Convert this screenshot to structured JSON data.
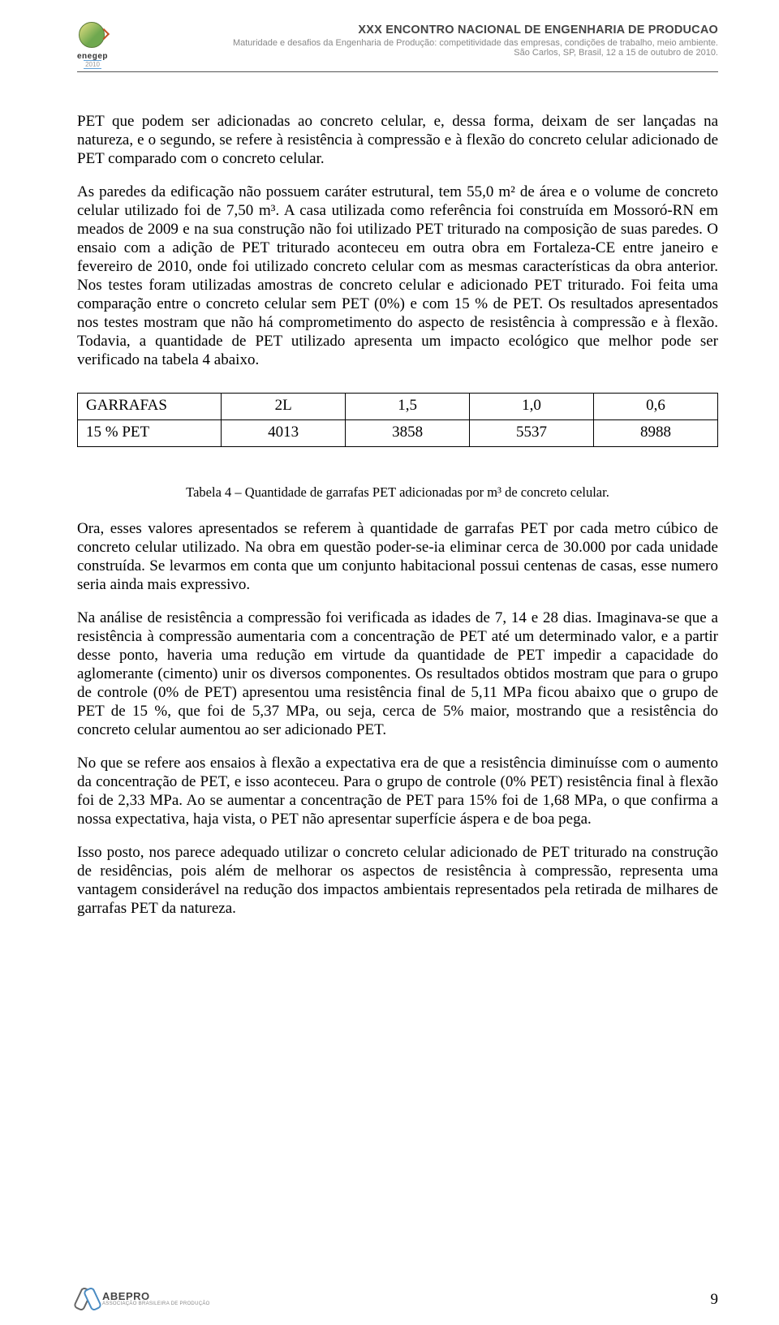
{
  "header": {
    "title": "XXX ENCONTRO NACIONAL DE ENGENHARIA DE PRODUCAO",
    "subtitle": "Maturidade e desafios da Engenharia de Produção: competitividade das empresas, condições de trabalho, meio ambiente.",
    "location": "São Carlos, SP, Brasil, 12 a 15 de outubro de 2010.",
    "logo_name": "enegep",
    "logo_year": "2010"
  },
  "paragraphs": {
    "p1": "PET que podem ser adicionadas ao concreto celular, e, dessa forma, deixam de ser lançadas na natureza, e o segundo, se refere à resistência à compressão e à flexão do concreto celular adicionado de PET comparado com o concreto celular.",
    "p2": "As paredes da edificação não possuem caráter estrutural, tem 55,0 m² de área e o volume de concreto celular utilizado foi de 7,50 m³. A casa utilizada como referência foi construída em Mossoró-RN em meados de 2009 e na sua construção não foi utilizado PET triturado na composição de suas paredes. O ensaio com a adição de PET triturado aconteceu em outra obra em Fortaleza-CE entre janeiro e fevereiro de 2010, onde foi utilizado concreto celular com as mesmas características da obra anterior. Nos testes foram utilizadas amostras de concreto celular e adicionado PET triturado. Foi feita uma comparação entre o concreto celular sem PET (0%) e com 15 % de PET. Os resultados apresentados nos testes mostram que não há comprometimento do aspecto de resistência à compressão e à flexão. Todavia, a quantidade de PET utilizado apresenta um impacto ecológico que melhor pode ser verificado na tabela 4 abaixo.",
    "p3": "Ora, esses valores apresentados se referem à quantidade de garrafas PET por cada metro cúbico de concreto celular utilizado. Na obra em questão poder-se-ia eliminar cerca de 30.000 por cada unidade construída. Se levarmos em conta que um conjunto habitacional possui centenas de casas, esse numero seria ainda mais expressivo.",
    "p4": "Na análise de resistência a compressão foi verificada as idades de 7, 14 e 28 dias. Imaginava-se que a resistência à compressão aumentaria com a concentração de PET até um determinado valor, e a partir desse ponto, haveria uma redução em virtude da quantidade de PET impedir a capacidade do aglomerante (cimento) unir os diversos componentes. Os resultados obtidos mostram que para o grupo de controle (0% de PET) apresentou uma resistência final de 5,11 MPa ficou abaixo que o grupo de PET de 15 %, que foi de 5,37 MPa, ou seja, cerca de 5% maior, mostrando que a resistência do concreto celular aumentou ao ser adicionado PET.",
    "p5": "No que se refere aos ensaios à flexão a expectativa era de que a resistência diminuísse com o aumento da concentração de PET, e isso aconteceu. Para o grupo de controle (0% PET) resistência final à flexão foi de 2,33 MPa. Ao se aumentar a concentração de PET para 15% foi de 1,68 MPa, o que confirma a nossa expectativa, haja vista, o PET não apresentar superfície áspera e de boa pega.",
    "p6": "Isso posto, nos parece adequado utilizar o concreto celular adicionado de PET triturado na construção de residências, pois além de melhorar os aspectos de resistência à compressão, representa uma vantagem considerável na redução dos impactos ambientais representados pela retirada de milhares de garrafas PET da natureza."
  },
  "table": {
    "type": "table",
    "caption": "Tabela 4 – Quantidade de garrafas PET adicionadas por m³ de concreto celular.",
    "columns": [
      "GARRAFAS",
      "2L",
      "1,5",
      "1,0",
      "0,6"
    ],
    "rows": [
      [
        "15 % PET",
        "4013",
        "3858",
        "5537",
        "8988"
      ]
    ],
    "border_color": "#000000",
    "font_size_pt": 14,
    "cell_align_label": "left",
    "cell_align_value": "center"
  },
  "footer": {
    "logo_name": "ABEPRO",
    "logo_sub": "ASSOCIAÇÃO BRASILEIRA DE PRODUÇÃO",
    "page_number": "9"
  },
  "colors": {
    "text": "#000000",
    "header_text": "#666666",
    "background": "#ffffff",
    "rule": "#555555"
  }
}
